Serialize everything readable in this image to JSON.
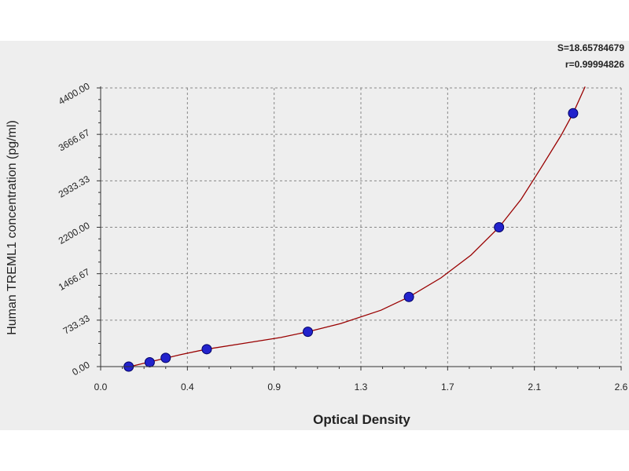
{
  "chart_data": {
    "type": "scatter",
    "title": "",
    "xlabel": "Optical Density",
    "ylabel": "Human TREML1 concentration (pg/ml)",
    "xlim": [
      0.0,
      2.6
    ],
    "ylim": [
      0.0,
      4400.0
    ],
    "x_ticks": [
      "0.0",
      "0.4",
      "0.9",
      "1.3",
      "1.7",
      "2.1",
      "2.6"
    ],
    "y_ticks": [
      "0.00",
      "733.33",
      "1466.67",
      "2200.00",
      "2933.33",
      "3666.67",
      "4400.00"
    ],
    "grid": true,
    "annotations": [
      "S=18.65784679",
      "r=0.99994826"
    ],
    "points": {
      "x": [
        0.14,
        0.245,
        0.325,
        0.53,
        1.035,
        1.54,
        1.99,
        2.36
      ],
      "y": [
        0,
        68.75,
        137.5,
        275,
        550,
        1100,
        2200,
        4000
      ]
    },
    "fit_curve": {
      "x": [
        0.12,
        0.2,
        0.3,
        0.4,
        0.53,
        0.7,
        0.9,
        1.035,
        1.2,
        1.4,
        1.54,
        1.7,
        1.85,
        1.99,
        2.1,
        2.2,
        2.3,
        2.36,
        2.42
      ],
      "y": [
        -20,
        40,
        115,
        190,
        275,
        360,
        460,
        550,
        680,
        890,
        1100,
        1400,
        1760,
        2200,
        2640,
        3140,
        3650,
        4000,
        4420
      ]
    },
    "colors": {
      "point_fill": "#2222cc",
      "point_edge": "#000066",
      "curve": "#990000",
      "grid": "#888888",
      "plot_background": "#eeeeee"
    }
  }
}
